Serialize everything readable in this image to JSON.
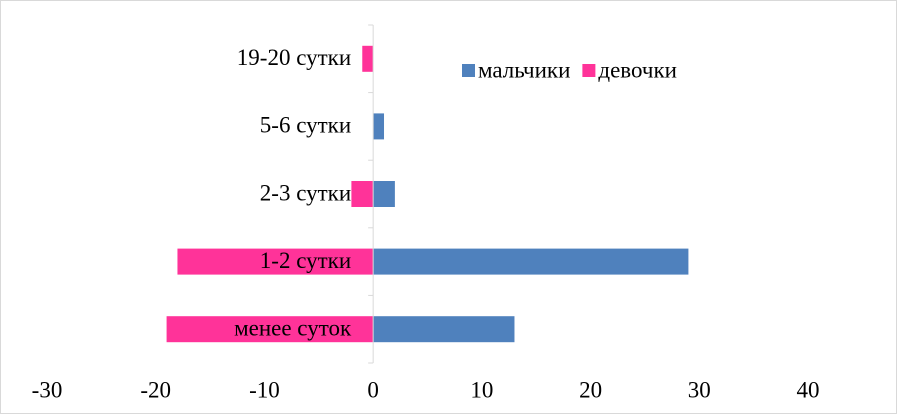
{
  "chart_data": {
    "type": "bar",
    "orientation": "horizontal",
    "categories": [
      "19-20 сутки",
      "5-6 сутки",
      "2-3 сутки",
      "1-2 сутки",
      "менее суток"
    ],
    "series": [
      {
        "name": "мальчики",
        "color": "#4f81bd",
        "values": [
          0,
          1,
          2,
          29,
          13
        ]
      },
      {
        "name": "девочки",
        "color": "#ff3399",
        "values": [
          -1,
          0,
          -2,
          -18,
          -19
        ]
      }
    ],
    "xlim": [
      -30,
      40
    ],
    "xticks": [
      -30,
      -20,
      -10,
      0,
      10,
      20,
      30,
      40
    ],
    "legend": "top-right"
  }
}
